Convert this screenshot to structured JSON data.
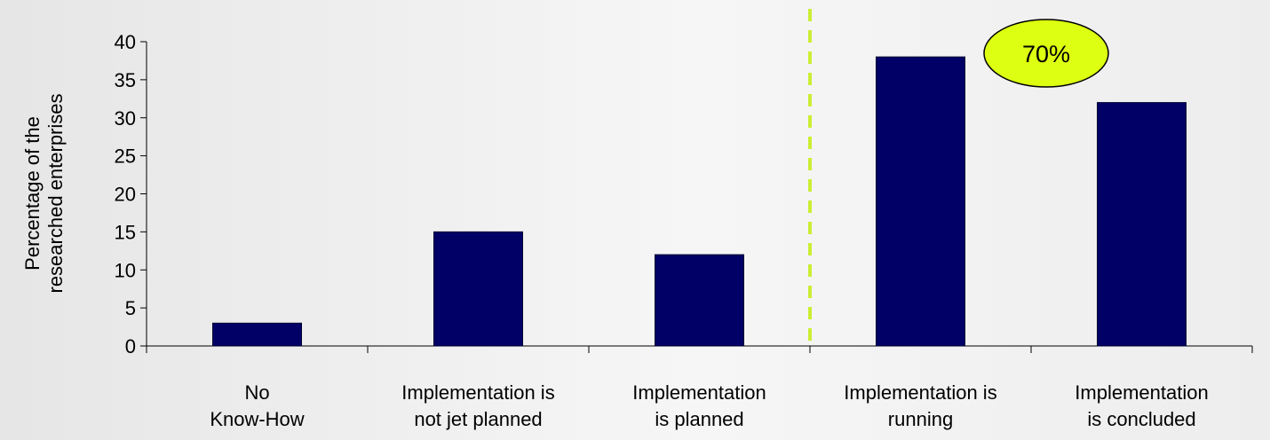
{
  "chart_data": {
    "type": "bar",
    "title": "",
    "xlabel": "",
    "ylabel_lines": [
      "Percentage of the",
      "researched enterprises"
    ],
    "categories": [
      [
        "No",
        "Know-How"
      ],
      [
        "Implementation is",
        "not jet planned"
      ],
      [
        "Implementation",
        "is planned"
      ],
      [
        "Implementation is",
        "running"
      ],
      [
        "Implementation",
        "is concluded"
      ]
    ],
    "values": [
      3,
      15,
      12,
      38,
      32
    ],
    "ylim": [
      0,
      40
    ],
    "yticks": [
      0,
      5,
      10,
      15,
      20,
      25,
      30,
      35,
      40
    ],
    "grid": false,
    "legend": "none",
    "divider_after_category": 2,
    "annotation": "70%",
    "colors": {
      "bar": "#000066",
      "divider": "#ccee33",
      "callout_fill": "#ddff11",
      "callout_stroke": "#000000",
      "axis": "#000000"
    }
  }
}
